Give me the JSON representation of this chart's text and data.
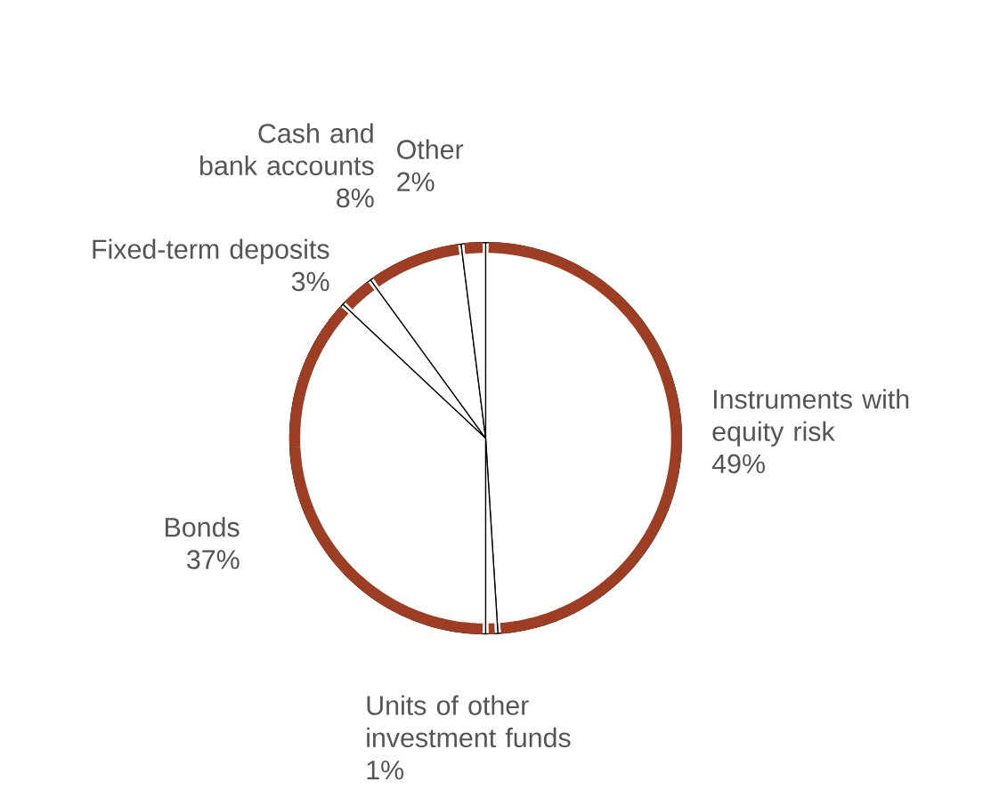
{
  "chart_data": {
    "type": "pie",
    "categories": [
      "Instruments with equity risk",
      "Units of other investment funds",
      "Bonds",
      "Fixed-term deposits",
      "Cash and bank accounts",
      "Other"
    ],
    "values": [
      49,
      1,
      37,
      3,
      8,
      2
    ],
    "value_labels": [
      "49%",
      "1%",
      "37%",
      "3%",
      "8%",
      "2%"
    ],
    "colors": [
      "#ffffff",
      "#ffffff",
      "#ffffff",
      "#ffffff",
      "#ffffff",
      "#ffffff"
    ]
  }
}
